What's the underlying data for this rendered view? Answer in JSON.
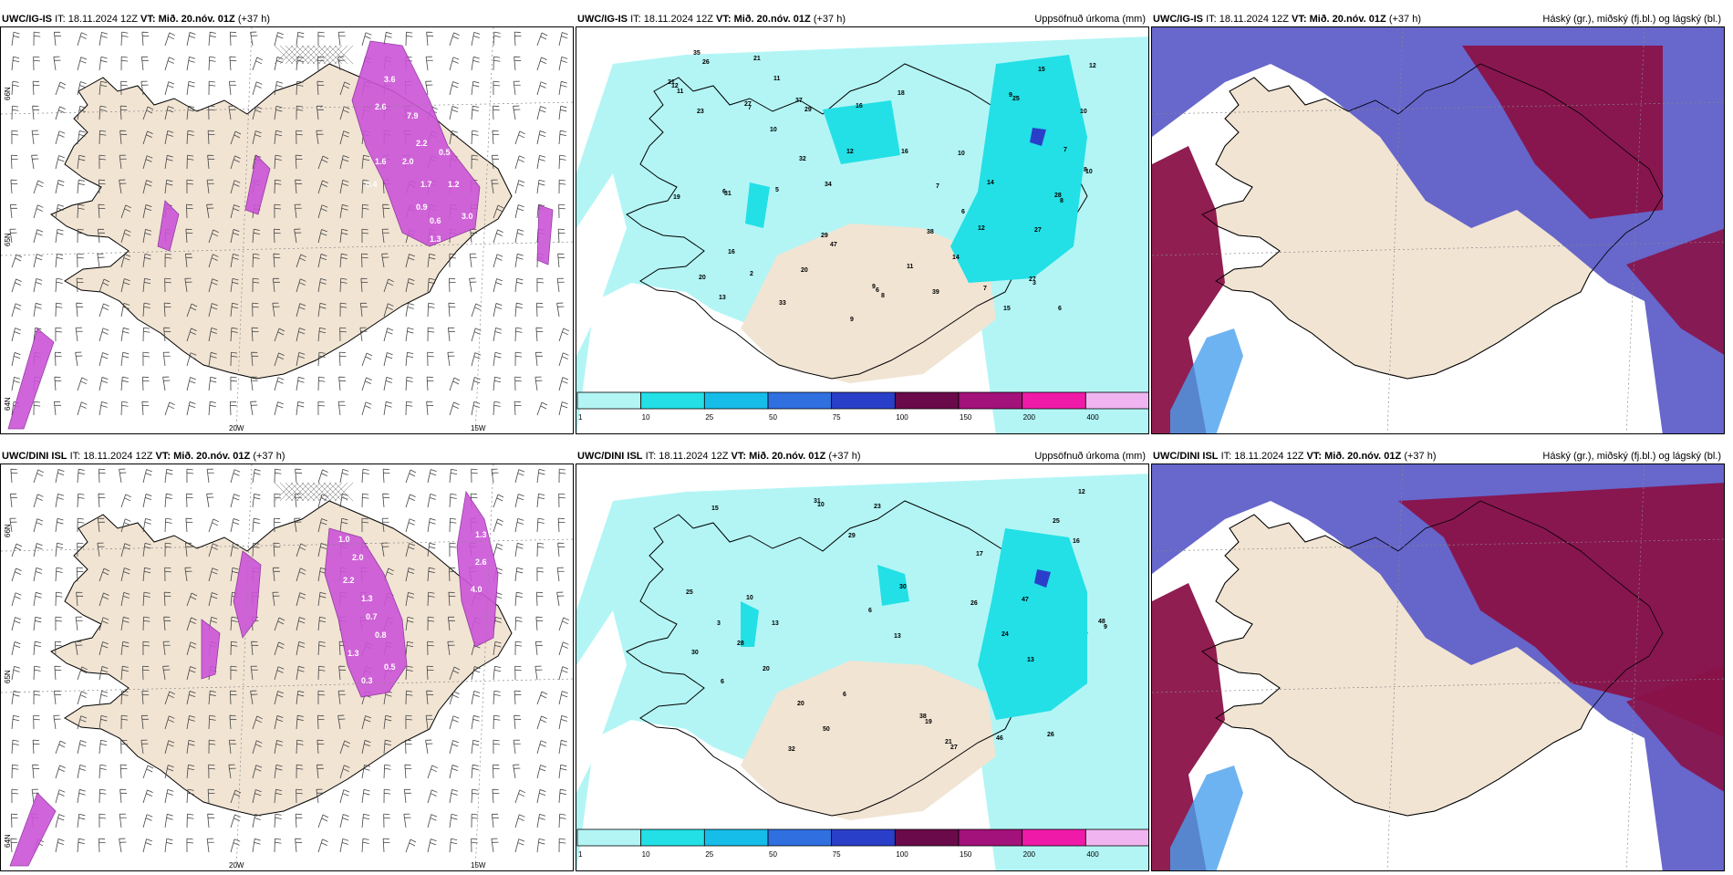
{
  "panels": [
    {
      "model": "UWC/IG-IS",
      "it": "IT: 18.11.2024 12Z",
      "vt": "VT: Mið. 20.nóv. 01Z",
      "lead": "(+37 h)",
      "right": ""
    },
    {
      "model": "UWC/IG-IS",
      "it": "IT: 18.11.2024 12Z",
      "vt": "VT: Mið. 20.nóv. 01Z",
      "lead": "(+37 h)",
      "right": "Uppsöfnuð úrkoma (mm)"
    },
    {
      "model": "UWC/IG-IS",
      "it": "IT: 18.11.2024 12Z",
      "vt": "VT: Mið. 20.nóv. 01Z",
      "lead": "(+37 h)",
      "right": "Háský (gr.), miðský (fj.bl.) og lágský (bl.)"
    },
    {
      "model": "UWC/DINI ISL",
      "it": "IT: 18.11.2024 12Z",
      "vt": "VT: Mið. 20.nóv. 01Z",
      "lead": "(+37 h)",
      "right": ""
    },
    {
      "model": "UWC/DINI ISL",
      "it": "IT: 18.11.2024 12Z",
      "vt": "VT: Mið. 20.nóv. 01Z",
      "lead": "(+37 h)",
      "right": "Uppsöfnuð úrkoma (mm)"
    },
    {
      "model": "UWC/DINI ISL",
      "it": "IT: 18.11.2024 12Z",
      "vt": "VT: Mið. 20.nóv. 01Z",
      "lead": "(+37 h)",
      "right": "Háský (gr.), miðský (fj.bl.) og lágský (bl.)"
    }
  ],
  "grid_labels": {
    "lat_top": "66N",
    "lat_mid": "65N",
    "lat_bot": "64N",
    "lon_left": "20W",
    "lon_right": "15W"
  },
  "colorbar": {
    "ticks": [
      "1",
      "10",
      "25",
      "50",
      "75",
      "100",
      "150",
      "200",
      "400"
    ],
    "colors": [
      "#b3f5f5",
      "#22e0e6",
      "#16bde8",
      "#2f6fe0",
      "#2a3fc9",
      "#6a0a4a",
      "#a3117a",
      "#f01aa8",
      "#f0b5f0"
    ]
  },
  "colors": {
    "land": "#f1e4d3",
    "precip_light": "#b3f5f5",
    "precip_mid": "#22e0e6",
    "cloud_high": "#8a1248",
    "cloud_mid": "#5a5ac8",
    "cloud_low": "#4aa0ee",
    "snow": "#cc55d8"
  },
  "precip_values_top": [
    "3",
    "7",
    "6",
    "6",
    "8",
    "14",
    "12",
    "25",
    "23",
    "15",
    "6",
    "7",
    "7",
    "12",
    "11",
    "11",
    "32",
    "26",
    "34",
    "16",
    "9",
    "21",
    "6",
    "33",
    "16",
    "29",
    "38",
    "47",
    "14",
    "16",
    "12",
    "8",
    "15",
    "11",
    "27",
    "39",
    "28",
    "10",
    "10",
    "7",
    "21",
    "9",
    "35",
    "27",
    "13",
    "8",
    "27",
    "10",
    "10",
    "19",
    "37",
    "20",
    "29",
    "31",
    "12",
    "2",
    "9",
    "5",
    "18",
    "20"
  ],
  "precip_values_bot": [
    "10",
    "6",
    "6",
    "10",
    "6",
    "13",
    "13",
    "20",
    "38",
    "50",
    "21",
    "29",
    "26",
    "23",
    "46",
    "30",
    "47",
    "19",
    "26",
    "27",
    "16",
    "17",
    "48",
    "24",
    "25",
    "13",
    "15",
    "25",
    "28",
    "12",
    "20",
    "9",
    "32",
    "30",
    "31",
    "3"
  ],
  "snow_values_top": [
    "3.6",
    "2.6",
    "7.9",
    "2.2",
    "1.6",
    "2.0",
    "0.4",
    "1.7",
    "0.9",
    "0.6",
    "1.3",
    "3.0",
    "1.2",
    "0.5"
  ],
  "snow_values_bot": [
    "1.0",
    "2.0",
    "2.2",
    "1.3",
    "0.7",
    "0.8",
    "1.3",
    "0.5",
    "0.3",
    "1.3",
    "2.6",
    "4.0"
  ]
}
